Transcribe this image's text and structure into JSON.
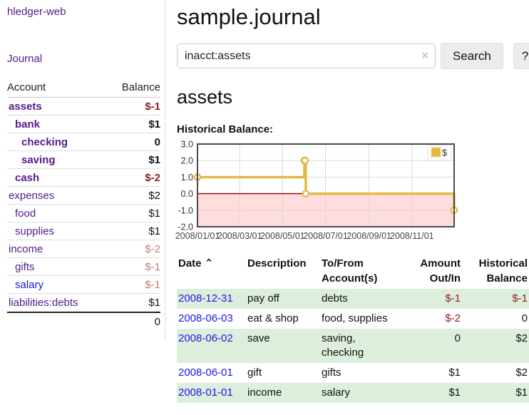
{
  "app": {
    "brand": "hledger-web",
    "nav_journal": "Journal"
  },
  "colors": {
    "link_purple": "#551a8b",
    "link_blue": "#1a1ae6",
    "negative": "#8b1f1f",
    "negative_muted": "#c47d7d",
    "row_stripe_green": "#ddeedd",
    "chart_line_gold": "#e3b83e",
    "chart_negative_region": "#ffdddd",
    "chart_zero_line": "#8b0000"
  },
  "sidebar": {
    "headers": {
      "account": "Account",
      "balance": "Balance"
    },
    "accounts": [
      {
        "name": "assets",
        "indent": 1,
        "balance": "$-1",
        "bold": true,
        "balance_style": "neg"
      },
      {
        "name": "bank",
        "indent": 2,
        "balance": "$1",
        "bold": true,
        "balance_style": ""
      },
      {
        "name": "checking",
        "indent": 3,
        "balance": "0",
        "bold": true,
        "balance_style": ""
      },
      {
        "name": "saving",
        "indent": 3,
        "balance": "$1",
        "bold": true,
        "balance_style": ""
      },
      {
        "name": "cash",
        "indent": 2,
        "balance": "$-2",
        "bold": true,
        "balance_style": "neg"
      },
      {
        "name": "expenses",
        "indent": 1,
        "balance": "$2",
        "bold": false,
        "balance_style": ""
      },
      {
        "name": "food",
        "indent": 2,
        "balance": "$1",
        "bold": false,
        "balance_style": ""
      },
      {
        "name": "supplies",
        "indent": 2,
        "balance": "$1",
        "bold": false,
        "balance_style": ""
      },
      {
        "name": "income",
        "indent": 1,
        "balance": "$-2",
        "bold": false,
        "balance_style": "negmuted"
      },
      {
        "name": "gifts",
        "indent": 2,
        "balance": "$-1",
        "bold": false,
        "balance_style": "negmuted"
      },
      {
        "name": "salary",
        "indent": 2,
        "balance": "$-1",
        "bold": false,
        "balance_style": "negmuted",
        "link_blue": true
      },
      {
        "name": "liabilities:debts",
        "indent": 1,
        "balance": "$1",
        "bold": false,
        "balance_style": ""
      }
    ],
    "total": "0"
  },
  "main": {
    "title": "sample.journal",
    "search": {
      "value": "inacct:assets",
      "clear_icon": "×",
      "search_button": "Search",
      "help_button": "?"
    },
    "account_heading": "assets",
    "chart_label": "Historical Balance:"
  },
  "chart_data": {
    "type": "line",
    "title": "Historical Balance",
    "step": true,
    "series": [
      {
        "name": "$",
        "points": [
          [
            "2008-01-01",
            1
          ],
          [
            "2008-06-01",
            2
          ],
          [
            "2008-06-02",
            2
          ],
          [
            "2008-06-03",
            0
          ],
          [
            "2008-12-31",
            -1
          ]
        ]
      }
    ],
    "x_range": [
      "2008-01-01",
      "2008-12-31"
    ],
    "ylim": [
      -2,
      3
    ],
    "y_ticks": [
      "3.0",
      "2.0",
      "1.0",
      "0.0",
      "-1.0",
      "-2.0"
    ],
    "x_ticks": [
      "2008/01/01",
      "2008/03/01",
      "2008/05/01",
      "2008/07/01",
      "2008/09/01",
      "2008/11/01"
    ],
    "legend": {
      "label": "$",
      "position": "top-right"
    },
    "grid": true,
    "negative_region_shaded": true
  },
  "register": {
    "headers": {
      "date": "Date",
      "sort_indicator": "⌃",
      "description": "Description",
      "accounts": "To/From Account(s)",
      "amount": "Amount Out/In",
      "balance": "Historical Balance"
    },
    "rows": [
      {
        "date": "2008-12-31",
        "description": "pay off",
        "accounts": "debts",
        "amount": "$-1",
        "amount_negative": true,
        "balance": "$-1",
        "balance_negative": true
      },
      {
        "date": "2008-06-03",
        "description": "eat & shop",
        "accounts": "food, supplies",
        "amount": "$-2",
        "amount_negative": true,
        "balance": "0",
        "balance_negative": false
      },
      {
        "date": "2008-06-02",
        "description": "save",
        "accounts": "saving, checking",
        "amount": "0",
        "amount_negative": false,
        "balance": "$2",
        "balance_negative": false
      },
      {
        "date": "2008-06-01",
        "description": "gift",
        "accounts": "gifts",
        "amount": "$1",
        "amount_negative": false,
        "balance": "$2",
        "balance_negative": false
      },
      {
        "date": "2008-01-01",
        "description": "income",
        "accounts": "salary",
        "amount": "$1",
        "amount_negative": false,
        "balance": "$1",
        "balance_negative": false
      }
    ]
  }
}
